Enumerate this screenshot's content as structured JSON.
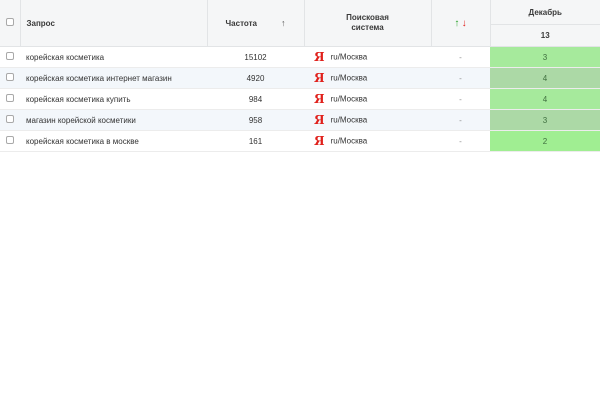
{
  "header": {
    "query": "Запрос",
    "frequency": "Частота",
    "frequency_sort": "↑",
    "search_engine": "Поисковая система",
    "change_up": "↑",
    "change_down": "↓",
    "month": "Декабрь",
    "day": "13"
  },
  "rows": [
    {
      "query": "корейская косметика",
      "frequency": "15102",
      "engine_icon": "Я",
      "region": "ru/Москва",
      "change": "-",
      "position": "3",
      "color": "#a6ea9c"
    },
    {
      "query": "корейская косметика интернет магазин",
      "frequency": "4920",
      "engine_icon": "Я",
      "region": "ru/Москва",
      "change": "-",
      "position": "4",
      "color": "#acd9a6"
    },
    {
      "query": "корейская косметика купить",
      "frequency": "984",
      "engine_icon": "Я",
      "region": "ru/Москва",
      "change": "-",
      "position": "4",
      "color": "#a6ea9c"
    },
    {
      "query": "магазин корейской косметики",
      "frequency": "958",
      "engine_icon": "Я",
      "region": "ru/Москва",
      "change": "-",
      "position": "3",
      "color": "#acd9a6"
    },
    {
      "query": "корейская косметика в москве",
      "frequency": "161",
      "engine_icon": "Я",
      "region": "ru/Москва",
      "change": "-",
      "position": "2",
      "color": "#a0ee92"
    }
  ]
}
